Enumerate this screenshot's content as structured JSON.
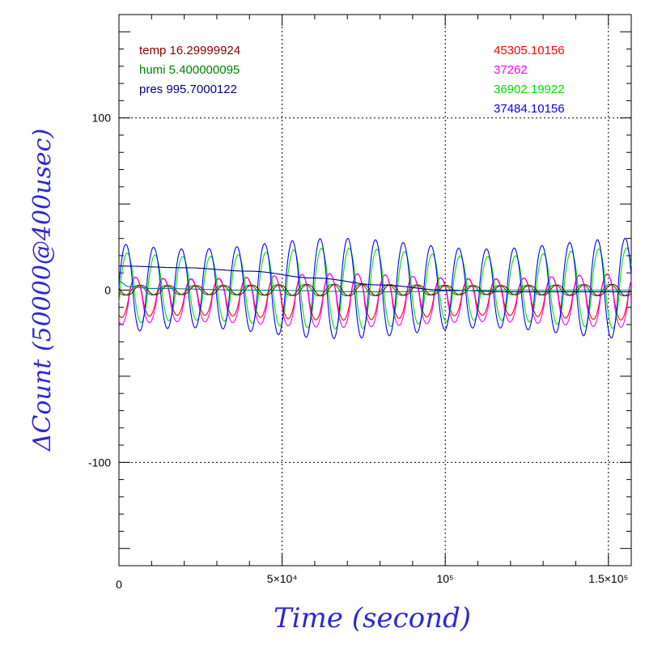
{
  "chart_data": {
    "type": "line",
    "title": "",
    "xlabel": "Time (second)",
    "ylabel": "ΔCount (50000@400usec)",
    "xlim": [
      0,
      157000
    ],
    "ylim": [
      -160,
      160
    ],
    "grid": true,
    "x_ticks": [
      {
        "value": 0,
        "label": "0"
      },
      {
        "value": 50000,
        "label": "5×10⁴"
      },
      {
        "value": 100000,
        "label": "10⁵"
      },
      {
        "value": 150000,
        "label": "1.5×10⁵"
      }
    ],
    "y_ticks": [
      {
        "value": 100,
        "label": "100"
      },
      {
        "value": 0,
        "label": "0"
      },
      {
        "value": -100,
        "label": "-100"
      }
    ],
    "legend_left": [
      {
        "text": "temp 16.29999924",
        "color": "#8b0000"
      },
      {
        "text": "humi 5.400000095",
        "color": "#008000"
      },
      {
        "text": "pres 995.7000122",
        "color": "#000080"
      }
    ],
    "legend_right": [
      {
        "text": "45305.10156",
        "color": "#ff0000"
      },
      {
        "text": "37262",
        "color": "#ff00ff"
      },
      {
        "text": "36902.19922",
        "color": "#00e000"
      },
      {
        "text": "37484.10156",
        "color": "#0000ff"
      }
    ],
    "oscillation_period_s": 8500,
    "series": [
      {
        "color": "#ff0000",
        "kind": "oscillation",
        "amplitude_range": [
          -16,
          8
        ],
        "phase": 0.35
      },
      {
        "color": "#ff00ff",
        "kind": "oscillation",
        "amplitude_range": [
          -20,
          8
        ],
        "phase": 0.35
      },
      {
        "color": "#00e000",
        "kind": "oscillation",
        "amplitude_range": [
          -20,
          22
        ],
        "phase": 0.05
      },
      {
        "color": "#0000ff",
        "kind": "oscillation",
        "amplitude_range": [
          -25,
          27
        ],
        "phase": 0.0
      },
      {
        "color": "#8b0000",
        "kind": "oscillation",
        "amplitude_range": [
          -3,
          3
        ],
        "phase": 0.55
      },
      {
        "color": "#008000",
        "kind": "oscillation",
        "amplitude_range": [
          -3,
          3
        ],
        "phase": 0.45
      },
      {
        "color": "#000080",
        "kind": "trend",
        "x": [
          0,
          20000,
          40000,
          60000,
          80000,
          100000,
          120000,
          140000,
          157000
        ],
        "y": [
          14,
          13,
          11,
          7,
          3,
          0,
          -1,
          -1,
          -1
        ]
      },
      {
        "color": "#008080",
        "kind": "trend",
        "x": [
          0,
          3000,
          10000,
          40000,
          80000,
          120000,
          157000
        ],
        "y": [
          5,
          2,
          1,
          0,
          -1,
          0,
          0
        ]
      }
    ]
  }
}
